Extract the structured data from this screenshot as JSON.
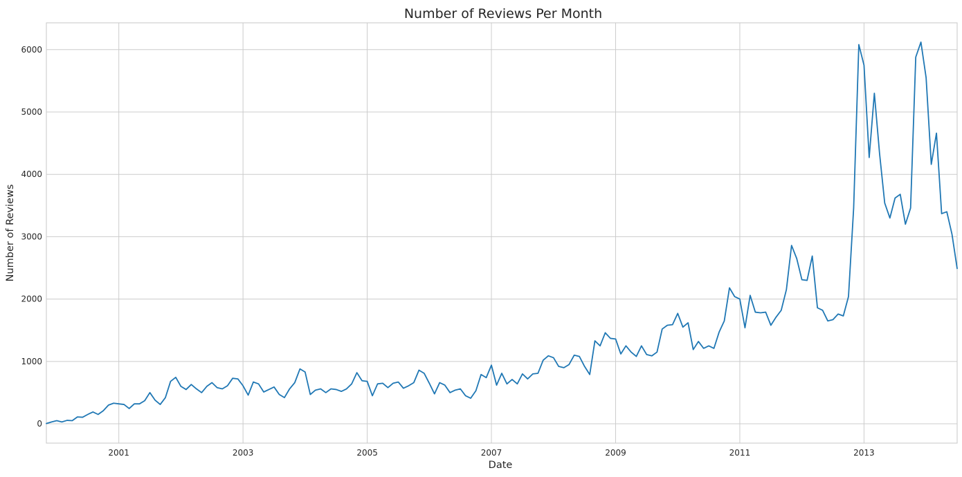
{
  "chart_data": {
    "type": "line",
    "title": "Number of Reviews Per Month",
    "xlabel": "Date",
    "ylabel": "Number of Reviews",
    "grid": true,
    "legend": "none",
    "colors": {
      "line": "#1f77b4",
      "grid": "#cccccc",
      "text": "#262626"
    },
    "x_range": [
      "1999-11",
      "2014-07"
    ],
    "ylim": [
      -310,
      6430
    ],
    "x_ticks": [
      {
        "date": "2001-01",
        "label": "2001"
      },
      {
        "date": "2003-01",
        "label": "2003"
      },
      {
        "date": "2005-01",
        "label": "2005"
      },
      {
        "date": "2007-01",
        "label": "2007"
      },
      {
        "date": "2009-01",
        "label": "2009"
      },
      {
        "date": "2011-01",
        "label": "2011"
      },
      {
        "date": "2013-01",
        "label": "2013"
      }
    ],
    "y_ticks": [
      {
        "value": 0,
        "label": "0"
      },
      {
        "value": 1000,
        "label": "1000"
      },
      {
        "value": 2000,
        "label": "2000"
      },
      {
        "value": 3000,
        "label": "3000"
      },
      {
        "value": 4000,
        "label": "4000"
      },
      {
        "value": 5000,
        "label": "5000"
      },
      {
        "value": 6000,
        "label": "6000"
      }
    ],
    "series": [
      {
        "start": "1999-11",
        "values": [
          5,
          30,
          50,
          30,
          55,
          50,
          110,
          105,
          150,
          190,
          150,
          210,
          300,
          330,
          320,
          310,
          245,
          320,
          320,
          370,
          500,
          380,
          310,
          420,
          680,
          745,
          600,
          550,
          630,
          560,
          500,
          600,
          660,
          580,
          560,
          610,
          730,
          720,
          610,
          460,
          670,
          640,
          510,
          550,
          590,
          470,
          420,
          560,
          660,
          880,
          830,
          470,
          540,
          560,
          500,
          560,
          550,
          520,
          560,
          640,
          820,
          690,
          680,
          450,
          640,
          650,
          580,
          650,
          670,
          570,
          610,
          660,
          860,
          810,
          650,
          480,
          660,
          620,
          500,
          540,
          560,
          450,
          410,
          530,
          790,
          740,
          940,
          620,
          810,
          640,
          710,
          640,
          800,
          720,
          800,
          810,
          1020,
          1090,
          1060,
          920,
          900,
          950,
          1100,
          1080,
          920,
          790,
          1330,
          1250,
          1460,
          1370,
          1360,
          1120,
          1250,
          1150,
          1080,
          1250,
          1110,
          1090,
          1150,
          1520,
          1580,
          1590,
          1770,
          1550,
          1620,
          1190,
          1320,
          1210,
          1250,
          1210,
          1470,
          1650,
          2180,
          2040,
          2000,
          1540,
          2060,
          1790,
          1780,
          1790,
          1580,
          1710,
          1820,
          2150,
          2860,
          2650,
          2310,
          2300,
          2690,
          1860,
          1820,
          1650,
          1670,
          1760,
          1730,
          2040,
          3460,
          6080,
          5750,
          4270,
          5300,
          4340,
          3540,
          3300,
          3620,
          3680,
          3200,
          3460,
          5880,
          6120,
          5550,
          4160,
          4660,
          3370,
          3400,
          3040,
          2490
        ]
      }
    ]
  }
}
